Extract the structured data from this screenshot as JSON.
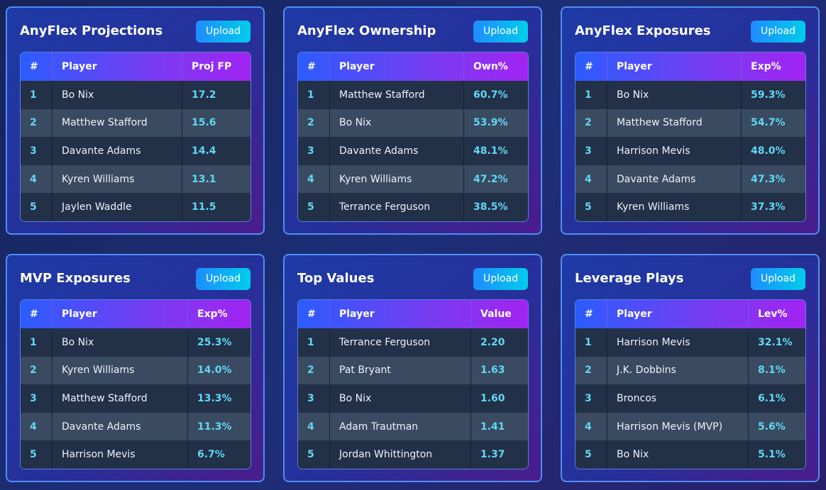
{
  "cards": [
    {
      "title": "AnyFlex Projections",
      "button": "Upload",
      "columns": [
        "#",
        "Player",
        "Proj FP"
      ],
      "rows": [
        [
          "1",
          "Bo Nix",
          "17.2"
        ],
        [
          "2",
          "Matthew Stafford",
          "15.6"
        ],
        [
          "3",
          "Davante Adams",
          "14.4"
        ],
        [
          "4",
          "Kyren Williams",
          "13.1"
        ],
        [
          "5",
          "Jaylen Waddle",
          "11.5"
        ]
      ]
    },
    {
      "title": "AnyFlex Ownership",
      "button": "Upload",
      "columns": [
        "#",
        "Player",
        "Own%"
      ],
      "rows": [
        [
          "1",
          "Matthew Stafford",
          "60.7%"
        ],
        [
          "2",
          "Bo Nix",
          "53.9%"
        ],
        [
          "3",
          "Davante Adams",
          "48.1%"
        ],
        [
          "4",
          "Kyren Williams",
          "47.2%"
        ],
        [
          "5",
          "Terrance Ferguson",
          "38.5%"
        ]
      ]
    },
    {
      "title": "AnyFlex Exposures",
      "button": "Upload",
      "columns": [
        "#",
        "Player",
        "Exp%"
      ],
      "rows": [
        [
          "1",
          "Bo Nix",
          "59.3%"
        ],
        [
          "2",
          "Matthew Stafford",
          "54.7%"
        ],
        [
          "3",
          "Harrison Mevis",
          "48.0%"
        ],
        [
          "4",
          "Davante Adams",
          "47.3%"
        ],
        [
          "5",
          "Kyren Williams",
          "37.3%"
        ]
      ]
    },
    {
      "title": "MVP Exposures",
      "button": "Upload",
      "columns": [
        "#",
        "Player",
        "Exp%"
      ],
      "rows": [
        [
          "1",
          "Bo Nix",
          "25.3%"
        ],
        [
          "2",
          "Kyren Williams",
          "14.0%"
        ],
        [
          "3",
          "Matthew Stafford",
          "13.3%"
        ],
        [
          "4",
          "Davante Adams",
          "11.3%"
        ],
        [
          "5",
          "Harrison Mevis",
          "6.7%"
        ]
      ]
    },
    {
      "title": "Top Values",
      "button": "Upload",
      "columns": [
        "#",
        "Player",
        "Value"
      ],
      "rows": [
        [
          "1",
          "Terrance Ferguson",
          "2.20"
        ],
        [
          "2",
          "Pat Bryant",
          "1.63"
        ],
        [
          "3",
          "Bo Nix",
          "1.60"
        ],
        [
          "4",
          "Adam Trautman",
          "1.41"
        ],
        [
          "5",
          "Jordan Whittington",
          "1.37"
        ]
      ]
    },
    {
      "title": "Leverage Plays",
      "button": "Upload",
      "columns": [
        "#",
        "Player",
        "Lev%"
      ],
      "rows": [
        [
          "1",
          "Harrison Mevis",
          "32.1%"
        ],
        [
          "2",
          "J.K. Dobbins",
          "8.1%"
        ],
        [
          "3",
          "Broncos",
          "6.1%"
        ],
        [
          "4",
          "Harrison Mevis (MVP)",
          "5.6%"
        ],
        [
          "5",
          "Bo Nix",
          "5.1%"
        ]
      ]
    }
  ]
}
